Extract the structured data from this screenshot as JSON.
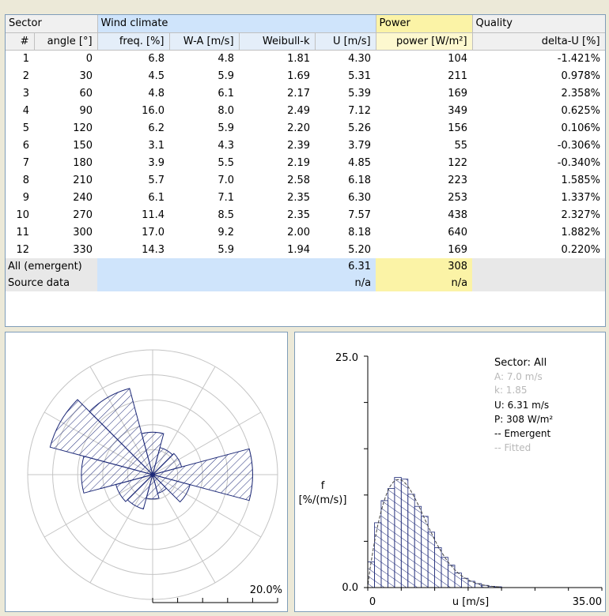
{
  "table": {
    "group_headers": {
      "sector": "Sector",
      "wind": "Wind climate",
      "power": "Power",
      "quality": "Quality"
    },
    "columns": [
      "#",
      "angle [°]",
      "freq. [%]",
      "W-A [m/s]",
      "Weibull-k",
      "U [m/s]",
      "power [W/m²]",
      "delta-U [%]"
    ],
    "rows": [
      [
        "1",
        "0",
        "6.8",
        "4.8",
        "1.81",
        "4.30",
        "104",
        "-1.421%"
      ],
      [
        "2",
        "30",
        "4.5",
        "5.9",
        "1.69",
        "5.31",
        "211",
        "0.978%"
      ],
      [
        "3",
        "60",
        "4.8",
        "6.1",
        "2.17",
        "5.39",
        "169",
        "2.358%"
      ],
      [
        "4",
        "90",
        "16.0",
        "8.0",
        "2.49",
        "7.12",
        "349",
        "0.625%"
      ],
      [
        "5",
        "120",
        "6.2",
        "5.9",
        "2.20",
        "5.26",
        "156",
        "0.106%"
      ],
      [
        "6",
        "150",
        "3.1",
        "4.3",
        "2.39",
        "3.79",
        "55",
        "-0.306%"
      ],
      [
        "7",
        "180",
        "3.9",
        "5.5",
        "2.19",
        "4.85",
        "122",
        "-0.340%"
      ],
      [
        "8",
        "210",
        "5.7",
        "7.0",
        "2.58",
        "6.18",
        "223",
        "1.585%"
      ],
      [
        "9",
        "240",
        "6.1",
        "7.1",
        "2.35",
        "6.30",
        "253",
        "1.337%"
      ],
      [
        "10",
        "270",
        "11.4",
        "8.5",
        "2.35",
        "7.57",
        "438",
        "2.327%"
      ],
      [
        "11",
        "300",
        "17.0",
        "9.2",
        "2.00",
        "8.18",
        "640",
        "1.882%"
      ],
      [
        "12",
        "330",
        "14.3",
        "5.9",
        "1.94",
        "5.20",
        "169",
        "0.220%"
      ]
    ],
    "summary": [
      {
        "label": "All (emergent)",
        "u": "6.31",
        "power": "308"
      },
      {
        "label": "Source data",
        "u": "n/a",
        "power": "n/a"
      }
    ]
  },
  "rose": {
    "scale_label": "20.0%",
    "max_percent": 20,
    "rings": 5,
    "sector_freqs": [
      6.8,
      4.5,
      4.8,
      16.0,
      6.2,
      3.1,
      3.9,
      5.7,
      6.1,
      11.4,
      17.0,
      14.3
    ]
  },
  "histogram": {
    "y_max_label": "25.0",
    "y_min_label": "0.0",
    "x_min_label": "0",
    "x_max_label": "35.00",
    "x_axis_label": "u [m/s]",
    "y_axis_label_1": "f",
    "y_axis_label_2": "[%/(m/s)]",
    "y_max": 25,
    "x_max": 35,
    "weibull_A": 7.0,
    "weibull_k": 1.85,
    "legend": {
      "sector": "Sector: All",
      "a": "A: 7.0 m/s",
      "k": "k: 1.85",
      "u": "U: 6.31 m/s",
      "p": "P: 308 W/m²",
      "emergent": "-- Emergent",
      "fitted": "-- Fitted"
    },
    "colors": {
      "bars": "#1e2a78",
      "muted": "#b8b8b8"
    }
  }
}
